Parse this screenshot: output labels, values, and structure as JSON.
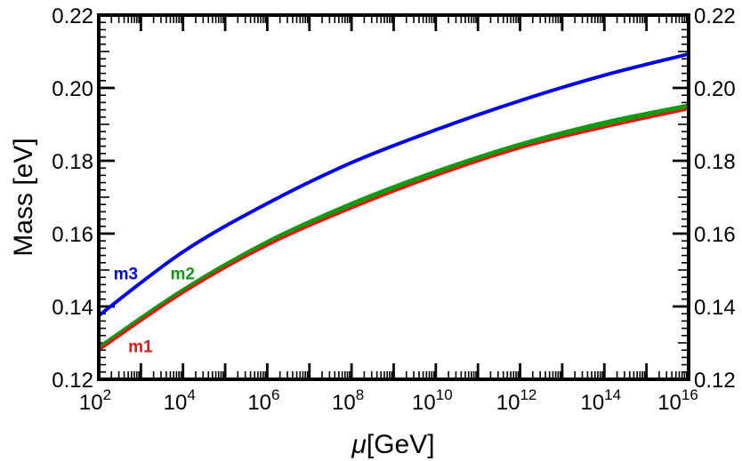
{
  "chart_data": {
    "type": "line",
    "title": "",
    "xlabel_symbol": "μ",
    "xlabel_unit": "[GeV]",
    "ylabel": "Mass [eV]",
    "x_scale": "log10",
    "x_exponent_range": [
      2,
      16
    ],
    "x_tick_base": "10",
    "x_tick_exponents": [
      "2",
      "4",
      "6",
      "8",
      "10",
      "12",
      "14",
      "16"
    ],
    "ylim": [
      0.12,
      0.22
    ],
    "y_ticks": [
      0.12,
      0.14,
      0.16,
      0.18,
      0.2,
      0.22
    ],
    "y_tick_labels": [
      "0.12",
      "0.14",
      "0.16",
      "0.18",
      "0.20",
      "0.22"
    ],
    "grid": false,
    "series": [
      {
        "name": "m1",
        "color": "#ee1111",
        "x_exponent": [
          2,
          4,
          6,
          8,
          10,
          12,
          14,
          16
        ],
        "values": [
          0.128,
          0.1438,
          0.1568,
          0.167,
          0.1759,
          0.1835,
          0.1892,
          0.1942
        ]
      },
      {
        "name": "m2",
        "color": "#119911",
        "x_exponent": [
          2,
          4,
          6,
          8,
          10,
          12,
          14,
          16
        ],
        "values": [
          0.1285,
          0.1443,
          0.1575,
          0.168,
          0.1768,
          0.1843,
          0.1903,
          0.195
        ]
      },
      {
        "name": "m3",
        "color": "#0000ee",
        "x_exponent": [
          2,
          4,
          6,
          8,
          10,
          12,
          14,
          16
        ],
        "values": [
          0.1375,
          0.155,
          0.1683,
          0.1795,
          0.1885,
          0.1965,
          0.2035,
          0.2093
        ]
      }
    ]
  }
}
